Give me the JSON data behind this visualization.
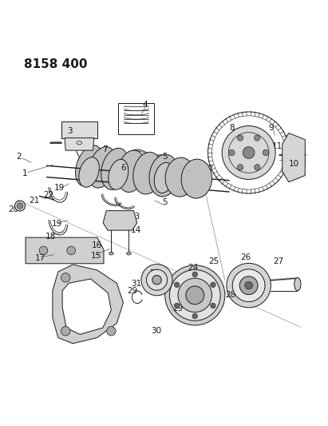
{
  "title": "8158 400",
  "bg_color": "#ffffff",
  "line_color": "#1a1a1a",
  "title_fontsize": 11,
  "label_fontsize": 7.5,
  "fig_width": 4.11,
  "fig_height": 5.33,
  "dpi": 100
}
